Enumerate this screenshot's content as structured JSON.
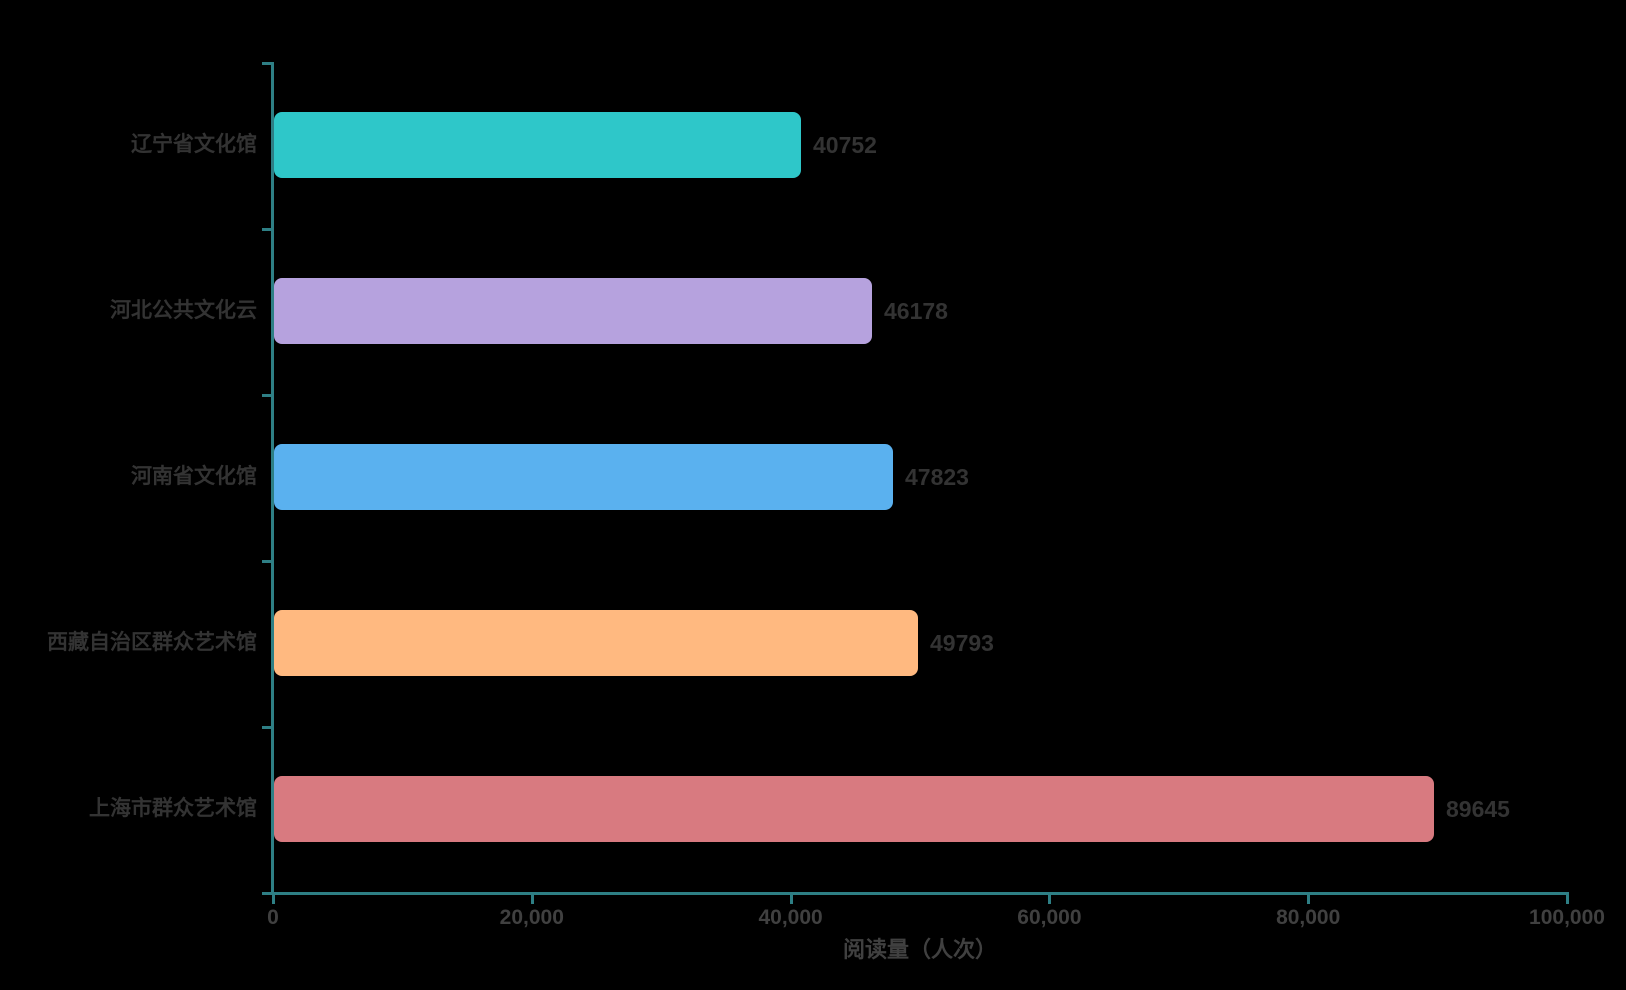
{
  "chart_data": {
    "type": "bar",
    "orientation": "horizontal",
    "title": "",
    "xlabel": "阅读量（人次）",
    "ylabel": "",
    "xlim": [
      0,
      100000
    ],
    "grid": false,
    "legend_position": "none",
    "row_order": "top-to-bottom",
    "categories": [
      "辽宁省文化馆",
      "河北公共文化云",
      "河南省文化馆",
      "西藏自治区群众艺术馆",
      "上海市群众艺术馆"
    ],
    "values": [
      40752,
      46178,
      47823,
      49793,
      89645
    ],
    "value_labels": [
      "40752",
      "46178",
      "47823",
      "49793",
      "89645"
    ],
    "bar_colors": [
      "#2ec7c9",
      "#b6a2de",
      "#5ab1ef",
      "#ffb980",
      "#d87a80"
    ],
    "x_tick_values": [
      0,
      20000,
      40000,
      60000,
      80000,
      100000
    ],
    "x_tick_labels": [
      "0",
      "20,000",
      "40,000",
      "60,000",
      "80,000",
      "100,000"
    ],
    "colors": {
      "axis": "#2e7f85",
      "category_label": "#333333",
      "value_label": "#333333",
      "tick_label": "#404040",
      "axis_title": "#404040",
      "background": "#000000"
    }
  }
}
